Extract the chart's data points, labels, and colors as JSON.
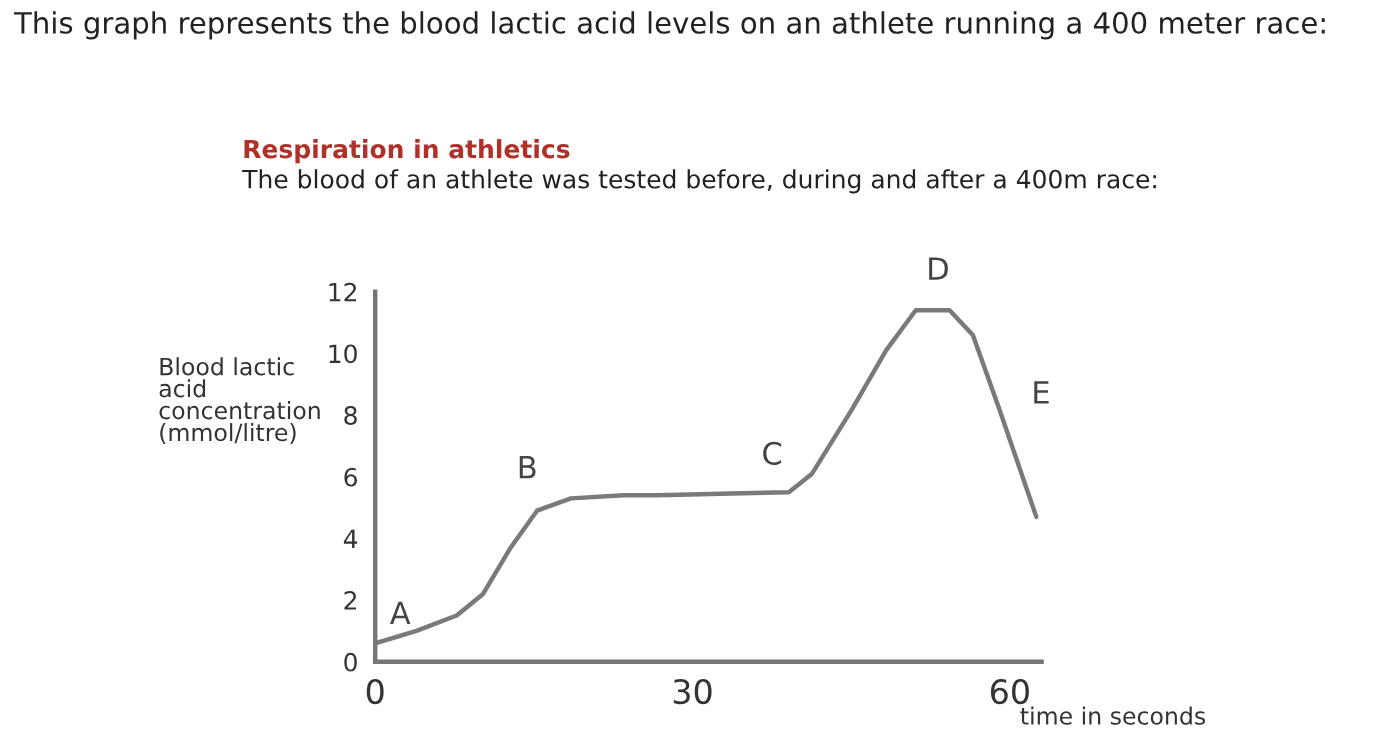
{
  "chart_data": {
    "type": "line",
    "title": "This graph represents the blood lactic acid levels on an athlete running a 400 meter race:",
    "subtitle": "Respiration in athletics",
    "annotations": [
      "The blood of an athlete was tested before, during and after a 400m race:",
      {
        "text": "A",
        "x": 0,
        "y": 0.6
      },
      {
        "text": "B",
        "x": 12.8,
        "y": 3.7
      },
      {
        "text": "C",
        "x": 39.1,
        "y": 5.5
      },
      {
        "text": "D",
        "x": 51.1,
        "y": 11.4
      },
      {
        "text": "E",
        "x": 59,
        "y": 8.2
      }
    ],
    "xlabel": "time in seconds",
    "ylabel": "Blood lactic\nacid\nconcentration\n(mmol/litre)",
    "series": [
      {
        "color": "#7a7a7a",
        "x": [
          0,
          3.9,
          7.7,
          10.2,
          12.8,
          15.3,
          18.5,
          23.5,
          26.7,
          39.1,
          41.3,
          45.1,
          48.3,
          51.1,
          54.3,
          56.5,
          59,
          62.5
        ],
        "values": [
          0.6,
          1.0,
          1.5,
          2.2,
          3.7,
          4.9,
          5.3,
          5.4,
          5.4,
          5.5,
          6.1,
          8.2,
          10.1,
          11.4,
          11.4,
          10.6,
          8.2,
          4.7
        ]
      }
    ],
    "xlim": [
      0,
      63
    ],
    "ylim": [
      0,
      12
    ],
    "xticks": [
      0,
      30,
      60
    ],
    "yticks": [
      0,
      2,
      4,
      6,
      8,
      10,
      12
    ],
    "grid": false,
    "legend": false,
    "marker": "none",
    "line_style": "solid"
  }
}
